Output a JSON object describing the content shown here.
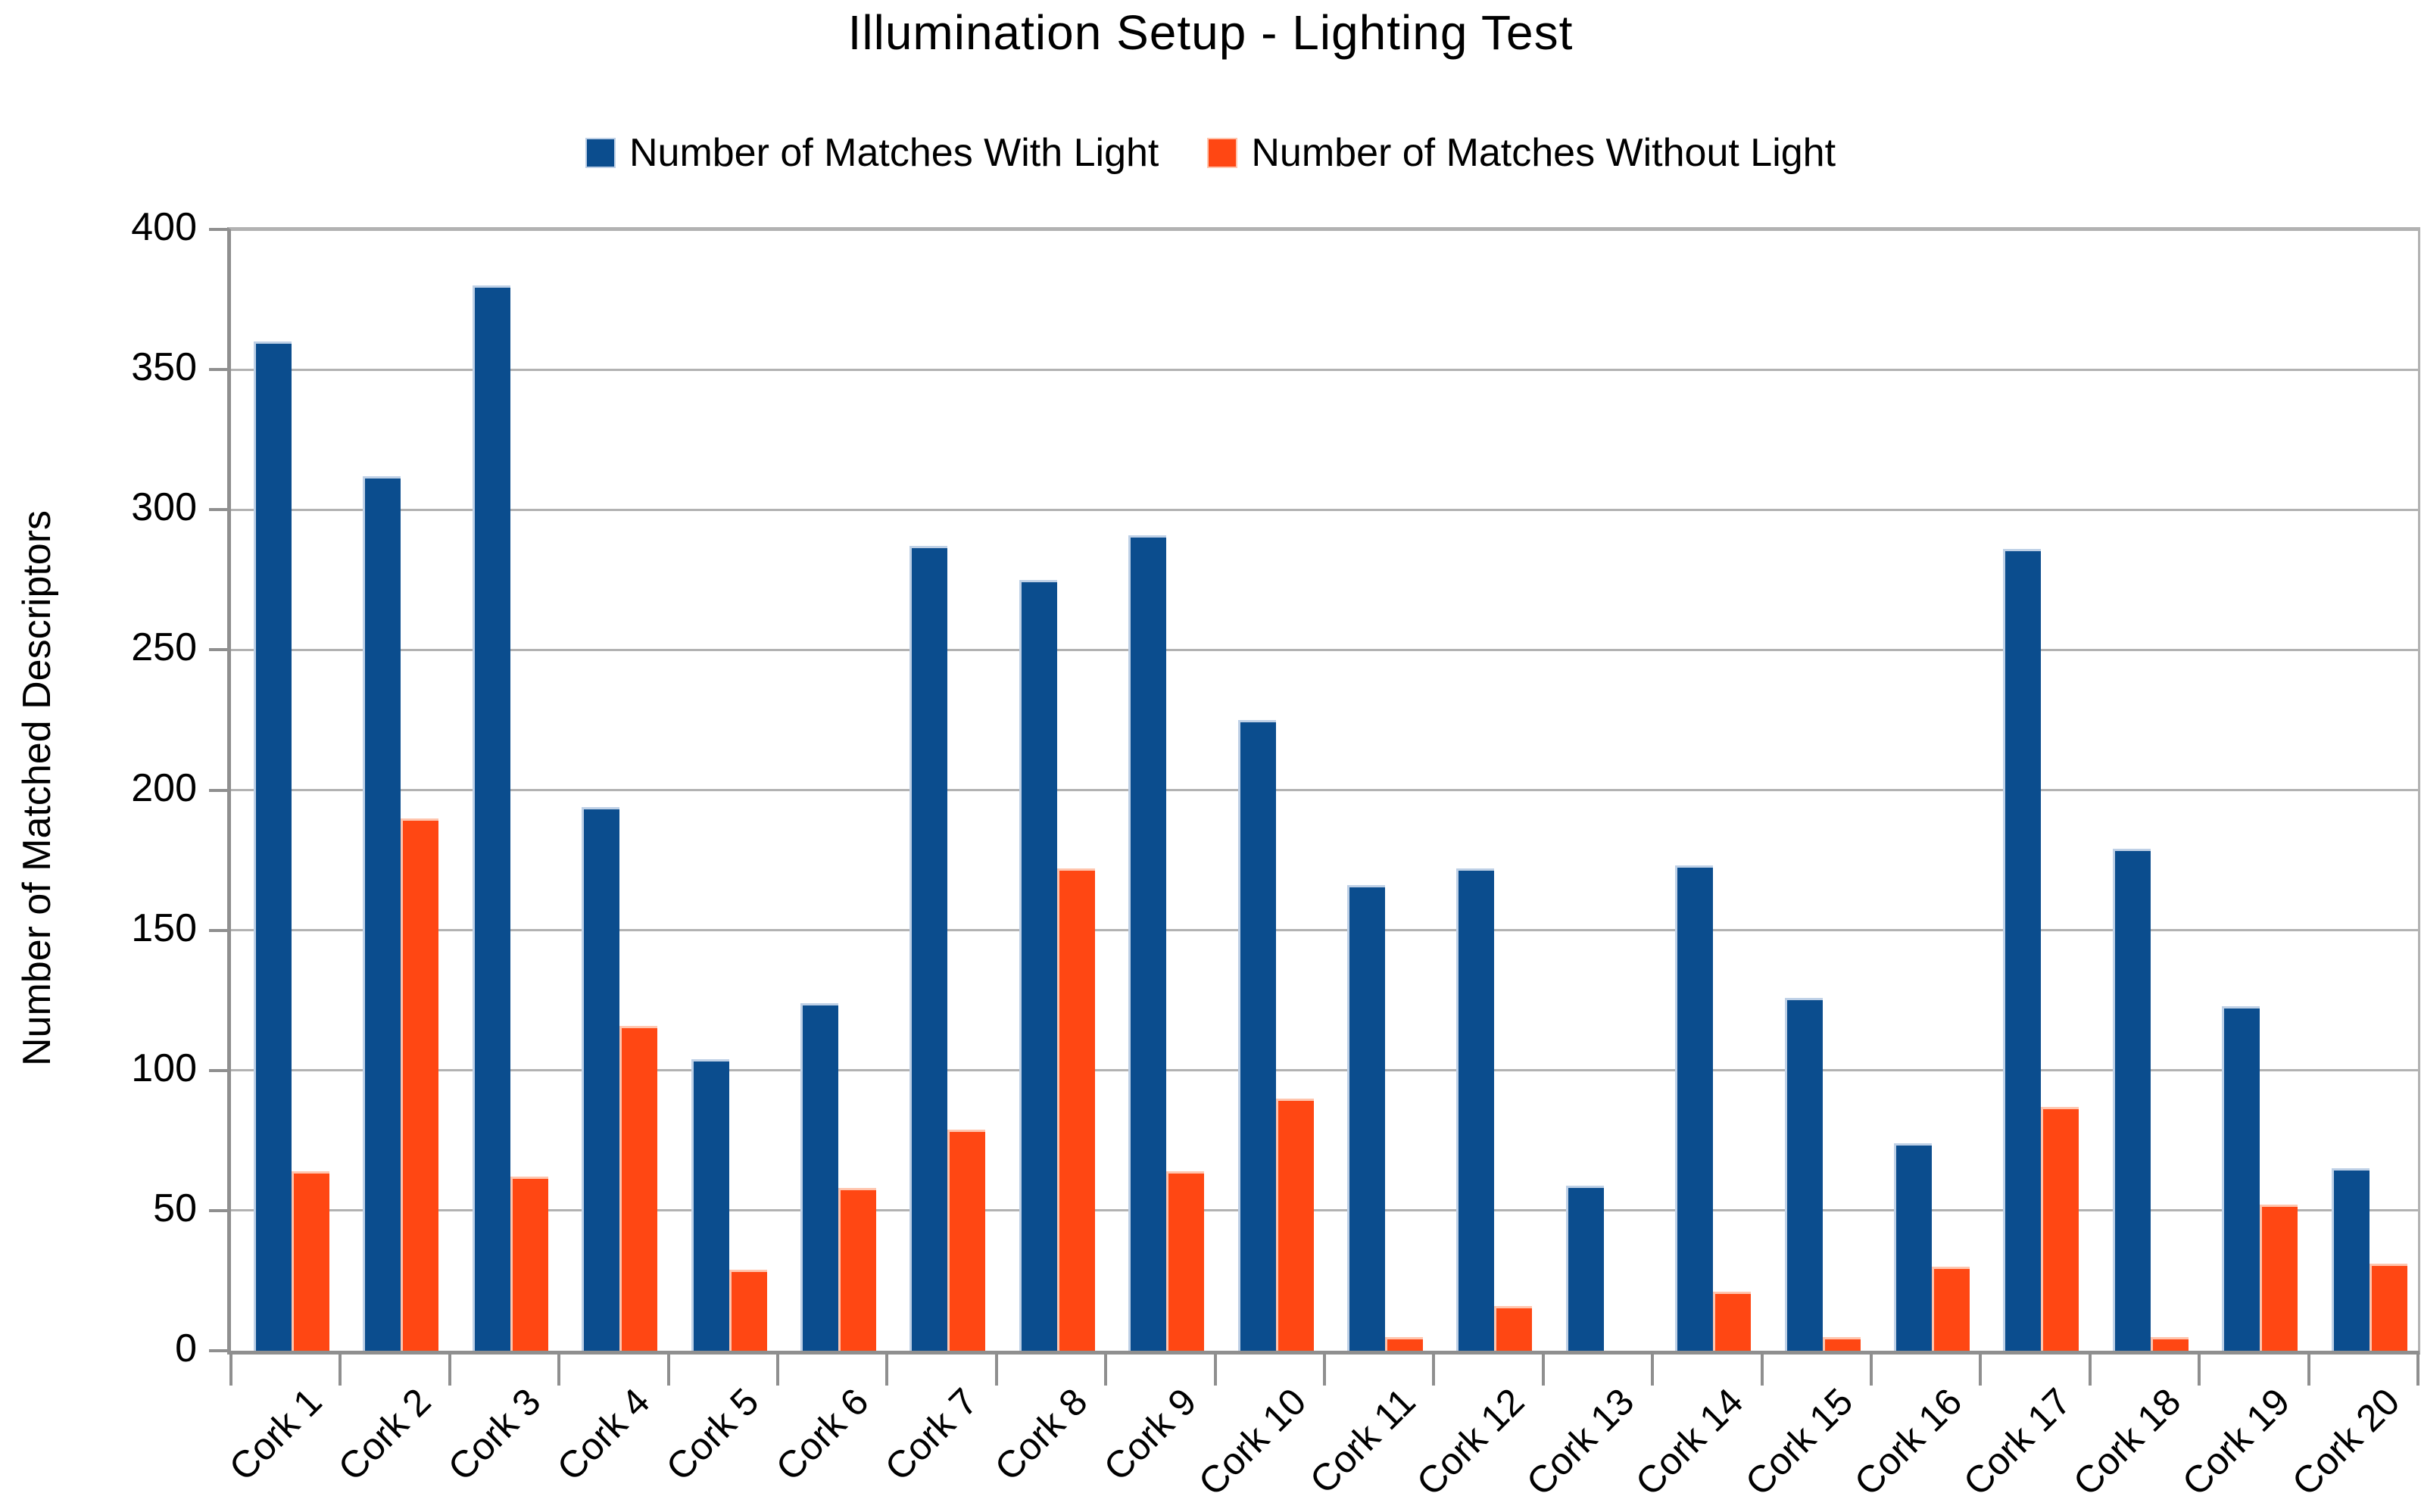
{
  "title": "Illumination Setup - Lighting Test",
  "chart_data": {
    "type": "bar",
    "title": "Illumination Setup - Lighting Test",
    "categories": [
      "Cork 1",
      "Cork 2",
      "Cork 3",
      "Cork 4",
      "Cork 5",
      "Cork 6",
      "Cork 7",
      "Cork 8",
      "Cork 9",
      "Cork 10",
      "Cork 11",
      "Cork 12",
      "Cork 13",
      "Cork 14",
      "Cork 15",
      "Cork 16",
      "Cork 17",
      "Cork 18",
      "Cork 19",
      "Cork 20"
    ],
    "series": [
      {
        "key": "with-light",
        "name": "Number of Matches With Light",
        "color": "#0b4d8e",
        "stroke": "#bed0e6",
        "values": [
          360,
          312,
          380,
          194,
          104,
          124,
          287,
          275,
          291,
          225,
          166,
          172,
          59,
          173,
          126,
          74,
          286,
          179,
          123,
          65
        ]
      },
      {
        "key": "without-light",
        "name": "Number of Matches Without Light",
        "color": "#ff4713",
        "stroke": "#ffc5ae",
        "values": [
          64,
          190,
          62,
          116,
          29,
          58,
          79,
          172,
          64,
          90,
          5,
          16,
          0,
          21,
          5,
          30,
          87,
          5,
          52,
          31
        ]
      }
    ],
    "xlabel": "",
    "ylabel": "Number of Matched Descriptors",
    "ylim": [
      0,
      400
    ],
    "ytick_step": 50,
    "grid": true,
    "legend_position": "top",
    "colors": {
      "axis": "#8f8f8f",
      "grid": "#b2b2b2",
      "text": "#000000",
      "background": "#ffffff"
    }
  }
}
